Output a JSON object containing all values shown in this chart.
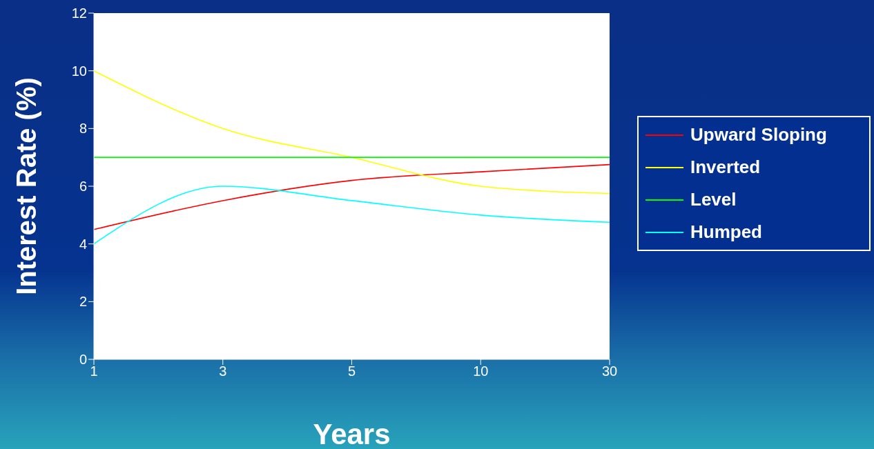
{
  "chart_data": {
    "type": "line",
    "xlabel": "Years",
    "ylabel": "Interest Rate (%)",
    "categories": [
      "1",
      "3",
      "5",
      "10",
      "30"
    ],
    "series": [
      {
        "name": "Upward Sloping",
        "color": "#ff0000",
        "values": [
          4.5,
          5.5,
          6.2,
          6.5,
          6.75
        ]
      },
      {
        "name": "Inverted",
        "color": "#ffff00",
        "values": [
          10,
          8,
          7,
          6,
          5.75
        ]
      },
      {
        "name": "Level",
        "color": "#00ff00",
        "values": [
          7,
          7,
          7,
          7,
          7
        ]
      },
      {
        "name": "Humped",
        "color": "#00ffff",
        "values": [
          4,
          6,
          5.5,
          5,
          4.75
        ]
      }
    ],
    "ylim": [
      0,
      12
    ],
    "yticks": [
      0,
      2,
      4,
      6,
      8,
      10,
      12
    ],
    "legend": "right",
    "marker": "none",
    "line_style": "solid"
  }
}
